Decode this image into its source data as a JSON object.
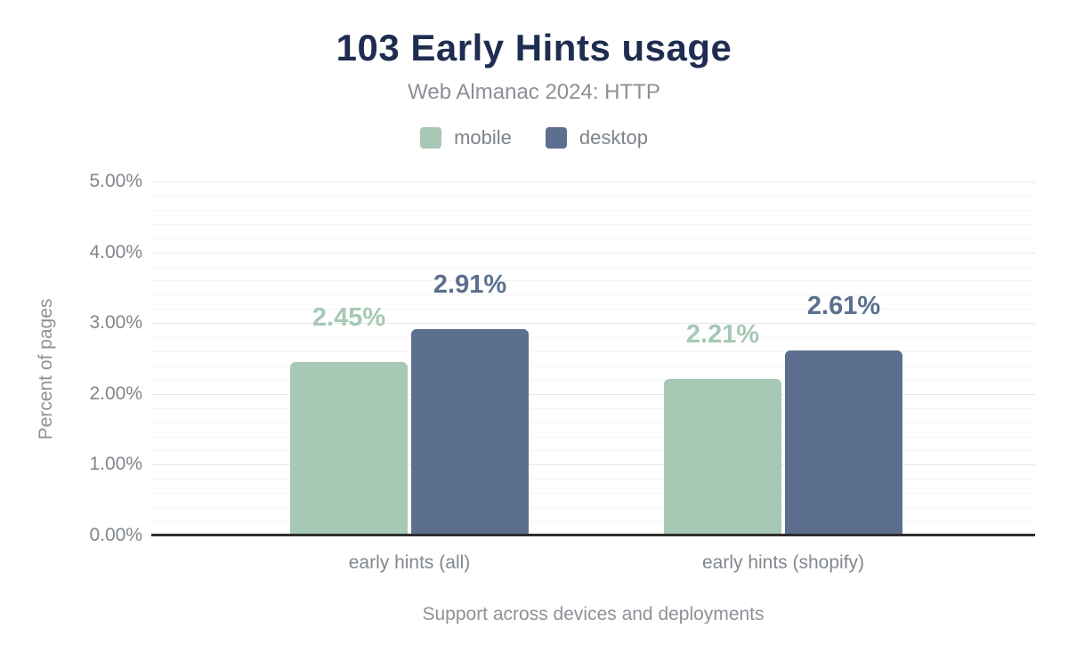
{
  "chart_data": {
    "type": "bar",
    "title": "103 Early Hints usage",
    "subtitle": "Web Almanac 2024: HTTP",
    "categories": [
      "early hints (all)",
      "early hints (shopify)"
    ],
    "series": [
      {
        "name": "mobile",
        "color": "#a6c8b4",
        "values": [
          2.45,
          2.21
        ],
        "labels": [
          "2.45%",
          "2.21%"
        ]
      },
      {
        "name": "desktop",
        "color": "#5c6f8e",
        "values": [
          2.91,
          2.61
        ],
        "labels": [
          "2.91%",
          "2.61%"
        ]
      }
    ],
    "xlabel": "Support across devices and deployments",
    "ylabel": "Percent of pages",
    "ylim": [
      0,
      5
    ],
    "ytick_step": 1,
    "minor_grid_step": 0.2,
    "yticks": [
      "0.00%",
      "1.00%",
      "2.00%",
      "3.00%",
      "4.00%",
      "5.00%"
    ],
    "legend_position": "top",
    "grid": true,
    "colors": {
      "title_text": "#1e2d50",
      "muted_text": "#82888e",
      "axis_line": "#2e2e2e",
      "grid_major": "#e7e7ea",
      "grid_minor": "#f5f5f6"
    }
  }
}
